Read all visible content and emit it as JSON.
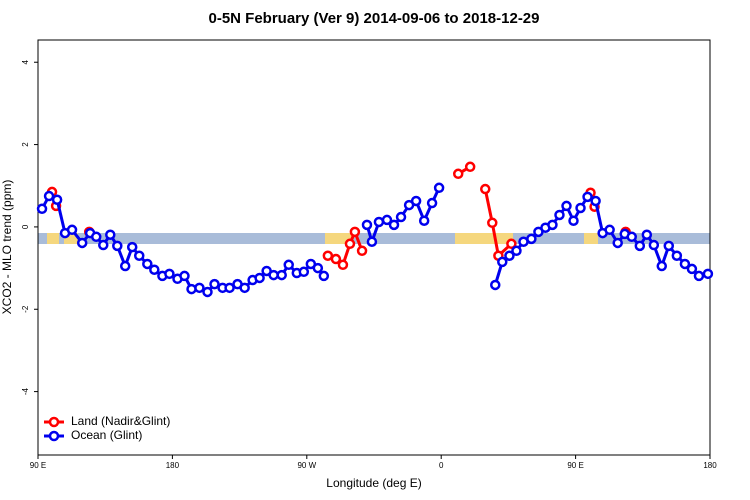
{
  "chart_data": {
    "type": "line",
    "title": "0-5N February (Ver 9)   2014-09-06 to 2018-12-29",
    "x_label": "Longitude (deg E)",
    "y_label": "XCO2 - MLO trend (ppm)",
    "xlim": [
      90,
      540
    ],
    "ylim": [
      -5.54,
      4.54
    ],
    "xticks": [
      {
        "value": 90,
        "label": "90 E"
      },
      180,
      {
        "value": 270,
        "label": "90 W"
      },
      {
        "value": 360,
        "label": "0"
      },
      {
        "value": 450,
        "label": "90 E"
      },
      {
        "value": 540,
        "label": "180"
      }
    ],
    "yticks": [
      -4,
      -2,
      0,
      2,
      4
    ],
    "legend": "bottom-left",
    "series": [
      {
        "name": "Land (Nadir&Glint)",
        "color": "#ff0000",
        "x": [
          99.4,
          102.1,
          null,
          124.3,
          null,
          284.1,
          289.5,
          294.2,
          298.9,
          302.2,
          307,
          null,
          371.4,
          379.4,
          null,
          389.5,
          394.2,
          398.3,
          407,
          null,
          460,
          462.7,
          null,
          483.5
        ],
        "values": [
          0.85,
          0.51,
          null,
          -0.12,
          null,
          -0.7,
          -0.78,
          -0.92,
          -0.41,
          -0.12,
          -0.58,
          null,
          1.29,
          1.46,
          null,
          0.92,
          0.1,
          -0.7,
          -0.41,
          null,
          0.83,
          0.49,
          null,
          -0.12
        ]
      },
      {
        "name": "Ocean (Glint)",
        "color": "#0000ee",
        "x": [
          92.7,
          97.4,
          102.8,
          108.1,
          112.8,
          119.6,
          124.9,
          129,
          133.7,
          138.4,
          143.1,
          148.4,
          153.1,
          157.8,
          163.2,
          167.9,
          173.3,
          178,
          183.4,
          188.1,
          192.8,
          198.1,
          203.5,
          208.2,
          213.6,
          218.3,
          223.6,
          228.4,
          233.7,
          238.4,
          243.1,
          247.8,
          253.2,
          257.9,
          263.3,
          268,
          272.7,
          277.4,
          281.4,
          null,
          310.3,
          313.6,
          318.3,
          323.7,
          328.4,
          333.1,
          338.5,
          343.2,
          348.6,
          353.9,
          358.6,
          null,
          396.2,
          400.9,
          405.7,
          410.4,
          415.1,
          420.4,
          425.1,
          429.8,
          434.5,
          439.2,
          443.9,
          448.6,
          453.3,
          458,
          463.4,
          468.1,
          472.8,
          478.2,
          482.9,
          487.6,
          493,
          497.7,
          502.4,
          507.7,
          512.4,
          517.8,
          523.2,
          527.9,
          532.6,
          538.6
        ],
        "values": [
          0.44,
          0.75,
          0.66,
          -0.15,
          -0.07,
          -0.39,
          -0.15,
          -0.24,
          -0.44,
          -0.19,
          -0.46,
          -0.95,
          -0.49,
          -0.7,
          -0.9,
          -1.04,
          -1.19,
          -1.14,
          -1.26,
          -1.19,
          -1.51,
          -1.48,
          -1.58,
          -1.39,
          -1.48,
          -1.48,
          -1.39,
          -1.48,
          -1.29,
          -1.24,
          -1.07,
          -1.17,
          -1.17,
          -0.92,
          -1.12,
          -1.09,
          -0.9,
          -1,
          -1.19,
          null,
          0.05,
          -0.36,
          0.12,
          0.17,
          0.05,
          0.24,
          0.53,
          0.63,
          0.15,
          0.58,
          0.95,
          null,
          -1.41,
          -0.85,
          -0.7,
          -0.58,
          -0.36,
          -0.29,
          -0.12,
          -0.02,
          0.05,
          0.29,
          0.51,
          0.15,
          0.46,
          0.73,
          0.63,
          -0.15,
          -0.07,
          -0.39,
          -0.17,
          -0.24,
          -0.46,
          -0.19,
          -0.44,
          -0.95,
          -0.46,
          -0.7,
          -0.9,
          -1.02,
          -1.19,
          -1.14
        ]
      }
    ]
  }
}
